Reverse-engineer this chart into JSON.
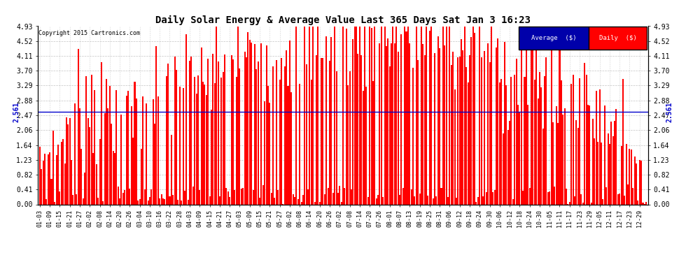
{
  "title": "Daily Solar Energy & Average Value Last 365 Days Sat Jan 3 16:23",
  "copyright": "Copyright 2015 Cartronics.com",
  "average_value": 2.561,
  "y_max": 4.93,
  "y_min": 0.0,
  "yticks": [
    0.0,
    0.41,
    0.82,
    1.23,
    1.64,
    2.06,
    2.47,
    2.88,
    3.29,
    3.7,
    4.11,
    4.52,
    4.93
  ],
  "bar_color": "#FF0000",
  "avg_line_color": "#0000CC",
  "background_color": "#FFFFFF",
  "legend_avg_bg": "#0000AA",
  "legend_daily_bg": "#CC0000",
  "legend_text_color": "#FFFFFF",
  "grid_color": "#AAAAAA",
  "x_tick_labels": [
    "01-03",
    "01-09",
    "01-15",
    "01-21",
    "01-27",
    "02-02",
    "02-08",
    "02-14",
    "02-20",
    "02-26",
    "03-04",
    "03-10",
    "03-16",
    "03-22",
    "03-28",
    "04-03",
    "04-09",
    "04-15",
    "04-21",
    "04-27",
    "05-03",
    "05-09",
    "05-15",
    "05-21",
    "05-27",
    "06-02",
    "06-08",
    "06-14",
    "06-20",
    "06-26",
    "07-02",
    "07-08",
    "07-14",
    "07-20",
    "07-26",
    "08-01",
    "08-07",
    "08-13",
    "08-19",
    "08-25",
    "08-31",
    "09-06",
    "09-12",
    "09-18",
    "09-24",
    "09-30",
    "10-06",
    "10-12",
    "10-18",
    "10-24",
    "10-30",
    "11-05",
    "11-11",
    "11-17",
    "11-23",
    "11-29",
    "12-05",
    "12-11",
    "12-17",
    "12-23",
    "12-29"
  ],
  "fig_width": 9.9,
  "fig_height": 3.75,
  "dpi": 100
}
